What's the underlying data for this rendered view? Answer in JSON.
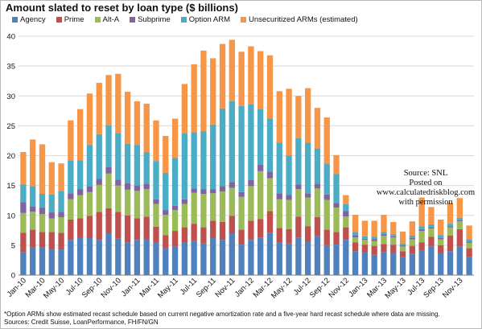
{
  "chart_data": {
    "type": "bar",
    "stacked": true,
    "title": "Amount slated to reset by loan type ($ billions)",
    "ylim": [
      0,
      40
    ],
    "yticks": [
      0,
      5,
      10,
      15,
      20,
      25,
      30,
      35,
      40
    ],
    "grid": true,
    "legend_position": "top",
    "categories": [
      "Jan-10",
      "Feb-10",
      "Mar-10",
      "Apr-10",
      "May-10",
      "Jun-10",
      "Jul-10",
      "Aug-10",
      "Sep-10",
      "Oct-10",
      "Nov-10",
      "Dec-10",
      "Jan-11",
      "Feb-11",
      "Mar-11",
      "Apr-11",
      "May-11",
      "Jun-11",
      "Jul-11",
      "Aug-11",
      "Sep-11",
      "Oct-11",
      "Nov-11",
      "Dec-11",
      "Jan-12",
      "Feb-12",
      "Mar-12",
      "Apr-12",
      "May-12",
      "Jun-12",
      "Jul-12",
      "Aug-12",
      "Sep-12",
      "Oct-12",
      "Nov-12",
      "Dec-12",
      "Jan-13",
      "Feb-13",
      "Mar-13",
      "Apr-13",
      "May-13",
      "Jun-13",
      "Jul-13",
      "Aug-13",
      "Sep-13",
      "Oct-13",
      "Nov-13",
      "Dec-13"
    ],
    "x_tick_labels": [
      "Jan-10",
      "Mar-10",
      "May-10",
      "Jul-10",
      "Sep-10",
      "Nov-10",
      "Jan-11",
      "Mar-11",
      "May-11",
      "Jul-11",
      "Sep-11",
      "Nov-11",
      "Jan-12",
      "Mar-12",
      "May-12",
      "Jul-12",
      "Sep-12",
      "Nov-12",
      "Jan-13",
      "Mar-13",
      "May-13",
      "Jul-13",
      "Sep-13",
      "Nov-13"
    ],
    "series": [
      {
        "name": "Agency",
        "color": "#4f81bd",
        "values": [
          3.8,
          4.6,
          4.6,
          4.3,
          4.3,
          5.9,
          6.2,
          6.2,
          5.9,
          7.0,
          6.1,
          5.5,
          5.9,
          6.0,
          5.4,
          4.5,
          4.8,
          5.4,
          5.7,
          5.3,
          6.2,
          5.9,
          7.0,
          5.1,
          5.9,
          6.3,
          7.1,
          5.4,
          5.3,
          6.3,
          5.6,
          6.5,
          5.0,
          5.1,
          5.9,
          4.0,
          3.9,
          3.4,
          3.8,
          3.7,
          3.0,
          3.6,
          4.1,
          4.8,
          3.7,
          4.0,
          4.8,
          3.0
        ]
      },
      {
        "name": "Prime",
        "color": "#c0504d",
        "values": [
          3.3,
          3.0,
          2.6,
          2.9,
          2.8,
          3.4,
          3.3,
          3.7,
          4.7,
          4.2,
          4.5,
          4.5,
          3.6,
          3.8,
          2.7,
          2.2,
          2.6,
          2.6,
          2.9,
          2.7,
          2.9,
          3.0,
          2.9,
          2.5,
          3.2,
          3.1,
          3.6,
          2.5,
          2.4,
          3.5,
          2.6,
          3.2,
          2.6,
          2.1,
          2.1,
          1.5,
          1.2,
          1.5,
          1.4,
          1.4,
          1.0,
          1.3,
          1.4,
          1.6,
          1.3,
          2.6,
          2.9,
          1.5
        ]
      },
      {
        "name": "Alt-A",
        "color": "#9bbb59",
        "values": [
          3.3,
          3.0,
          3.0,
          2.3,
          2.6,
          3.4,
          3.9,
          4.0,
          4.5,
          5.8,
          4.4,
          4.3,
          4.6,
          4.6,
          3.8,
          3.4,
          3.5,
          3.9,
          5.2,
          5.6,
          4.6,
          5.1,
          4.7,
          5.5,
          5.8,
          8.0,
          5.5,
          4.8,
          4.9,
          4.6,
          4.8,
          4.8,
          5.0,
          4.1,
          1.8,
          0.8,
          0.8,
          0.8,
          1.4,
          1.2,
          0.8,
          1.1,
          1.9,
          1.4,
          1.0,
          1.4,
          1.3,
          0.9
        ]
      },
      {
        "name": "Subprime",
        "color": "#8064a2",
        "values": [
          1.8,
          0.9,
          1.1,
          1.0,
          0.9,
          1.0,
          1.0,
          1.0,
          1.0,
          1.1,
          1.0,
          1.1,
          0.9,
          0.9,
          0.8,
          0.8,
          0.7,
          0.8,
          0.7,
          0.8,
          0.7,
          0.9,
          1.0,
          0.8,
          1.0,
          1.1,
          1.1,
          1.0,
          0.8,
          0.8,
          0.7,
          0.8,
          0.9,
          0.8,
          0.9,
          0.4,
          0.2,
          0.3,
          0.2,
          0.2,
          0.2,
          0.2,
          0.3,
          0.2,
          0.2,
          0.2,
          0.2,
          0.2
        ]
      },
      {
        "name": "Option ARM",
        "color": "#4bacc6",
        "values": [
          3.0,
          3.4,
          2.3,
          3.0,
          3.5,
          5.5,
          4.8,
          6.9,
          7.5,
          7.0,
          7.8,
          6.6,
          6.8,
          5.3,
          6.4,
          6.2,
          8.0,
          11.0,
          9.4,
          9.7,
          10.8,
          13.0,
          13.5,
          14.4,
          12.7,
          9.3,
          8.9,
          8.5,
          6.6,
          7.7,
          8.5,
          5.9,
          5.2,
          4.8,
          1.2,
          0.5,
          0.4,
          0.4,
          0.4,
          0.3,
          0.3,
          0.4,
          0.5,
          0.5,
          0.5,
          0.4,
          0.4,
          0.4
        ]
      },
      {
        "name": "Unsecuritized ARMs (estimated)",
        "color": "#f79646",
        "values": [
          5.4,
          7.8,
          8.3,
          5.4,
          4.6,
          6.7,
          8.6,
          8.6,
          8.6,
          8.4,
          9.9,
          8.7,
          7.3,
          8.1,
          6.8,
          6.2,
          6.6,
          8.3,
          11.4,
          13.5,
          11.1,
          10.8,
          10.3,
          9.1,
          9.7,
          9.7,
          10.6,
          8.6,
          11.2,
          7.1,
          9.1,
          6.8,
          7.7,
          3.2,
          1.5,
          2.9,
          2.6,
          2.7,
          2.9,
          2.1,
          2.0,
          2.4,
          4.8,
          2.9,
          2.6,
          3.5,
          3.3,
          2.3
        ]
      }
    ]
  },
  "source_note": [
    "Source: SNL",
    "Posted on www.calculatedriskblog.com",
    "with permission"
  ],
  "footnote": [
    "*Option ARMs show estimated recast schedule based on current negative amortization rate and a five-year hard recast schedule where data are missing.",
    "Sources: Credit Suisse, LoanPerformance, FH/FN/GN"
  ]
}
